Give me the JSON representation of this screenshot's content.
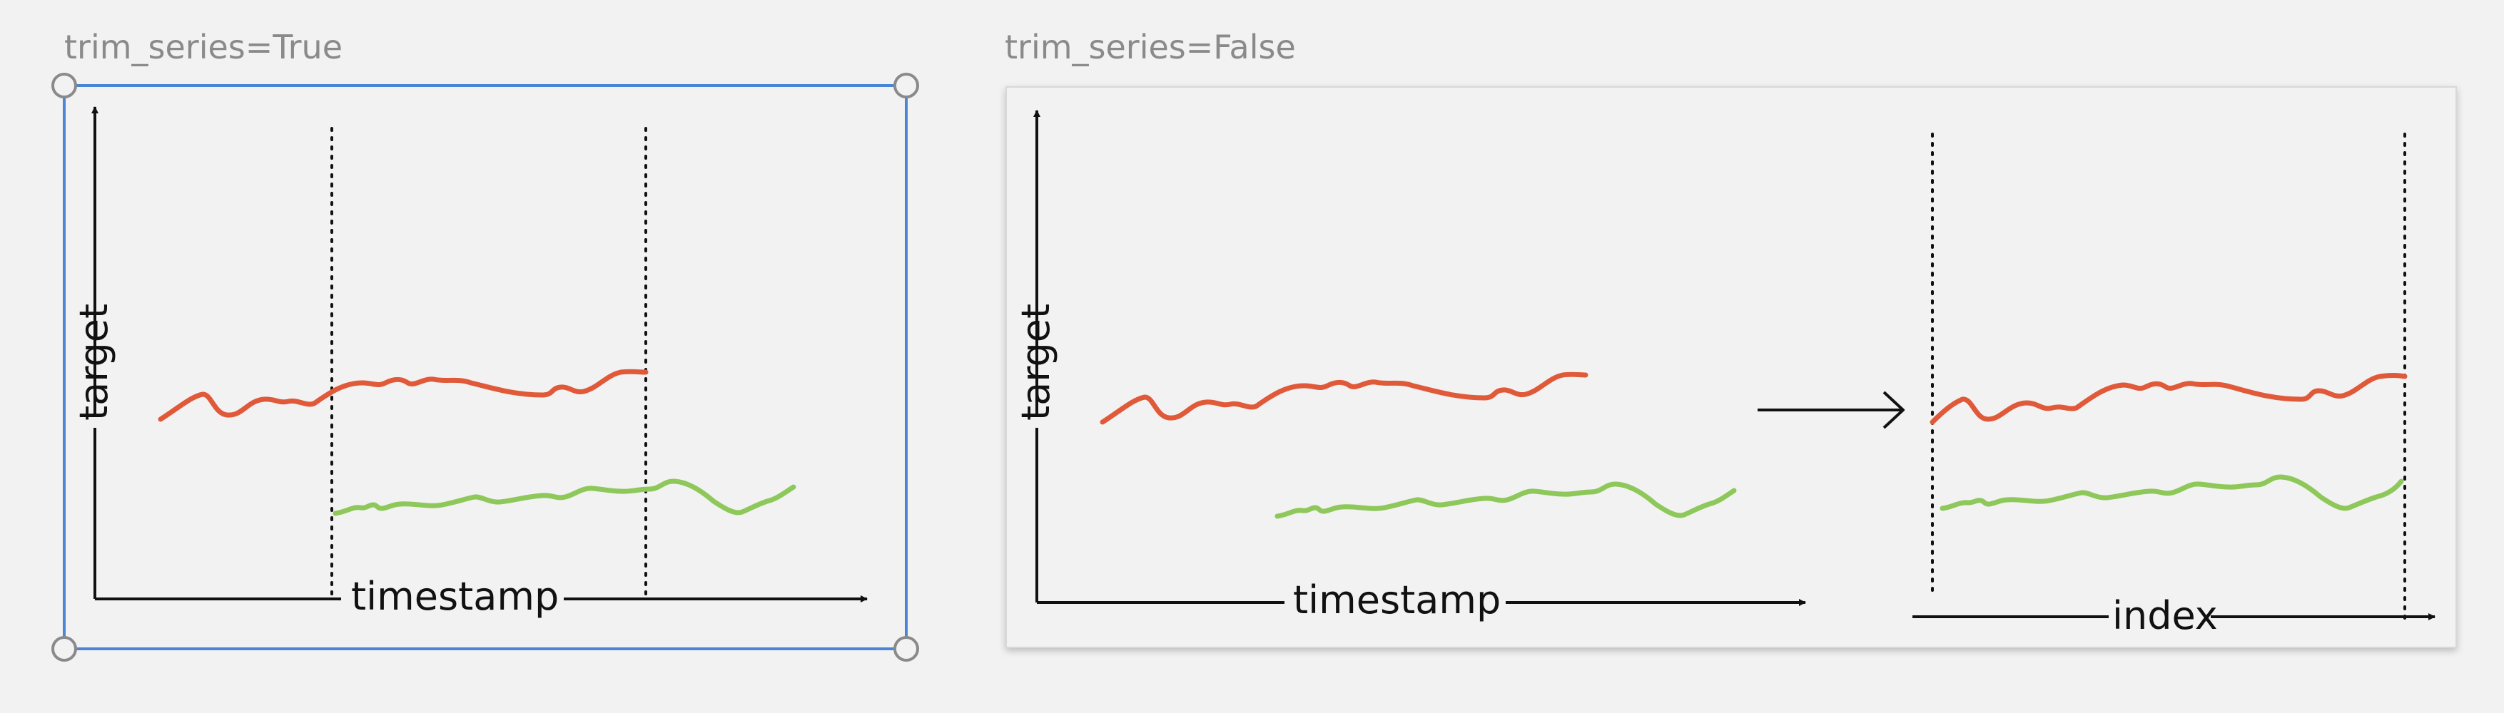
{
  "panels": [
    {
      "caption": "trim_series=True",
      "x_axis_label": "timestamp",
      "y_axis_label": "target",
      "selected": true
    },
    {
      "caption": "trim_series=False",
      "x_axis_label": "timestamp",
      "y_axis_label": "target",
      "result_axis_label": "index",
      "selected": false
    }
  ],
  "colors": {
    "background": "#f2f2f2",
    "panel_fill": "#f2f2f2",
    "selection_border": "#4a86d6",
    "series_red": "#e05a3a",
    "series_green": "#8ec85a",
    "axis": "#111111",
    "caption": "#8a8a8a"
  }
}
